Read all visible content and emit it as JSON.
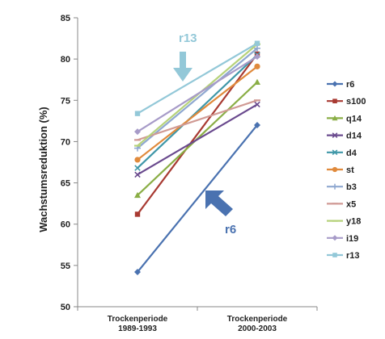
{
  "chart_data": {
    "type": "line",
    "title": "",
    "ylabel": "Wachstumsreduktion (%)",
    "xlabel": "",
    "categories": [
      [
        "Trockenperiode",
        "1989-1993"
      ],
      [
        "Trockenperiode",
        "2000-2003"
      ]
    ],
    "ylim": [
      50,
      85
    ],
    "yticks": [
      50,
      55,
      60,
      65,
      70,
      75,
      80,
      85
    ],
    "grid": false,
    "legend_position": "right",
    "series": [
      {
        "name": "r6",
        "color": "#4a72b0",
        "marker": "diamond",
        "values": [
          54.2,
          72.0
        ]
      },
      {
        "name": "s100",
        "color": "#a83a32",
        "marker": "square",
        "values": [
          61.2,
          80.6
        ]
      },
      {
        "name": "q14",
        "color": "#8aae46",
        "marker": "triangle",
        "values": [
          63.5,
          77.2
        ]
      },
      {
        "name": "d14",
        "color": "#6a4a8e",
        "marker": "x",
        "values": [
          66.0,
          74.5
        ]
      },
      {
        "name": "d4",
        "color": "#3f97a8",
        "marker": "x",
        "values": [
          66.8,
          80.5
        ]
      },
      {
        "name": "st",
        "color": "#e08a3c",
        "marker": "circle",
        "values": [
          67.8,
          79.1
        ]
      },
      {
        "name": "b3",
        "color": "#8fa8d0",
        "marker": "plus",
        "values": [
          69.2,
          81.3
        ]
      },
      {
        "name": "x5",
        "color": "#d09a94",
        "marker": "dash",
        "values": [
          70.2,
          75.0
        ]
      },
      {
        "name": "y18",
        "color": "#b6d27a",
        "marker": "dash",
        "values": [
          69.5,
          81.8
        ]
      },
      {
        "name": "i19",
        "color": "#a79bc8",
        "marker": "diamond",
        "values": [
          71.2,
          80.3
        ]
      },
      {
        "name": "r13",
        "color": "#93c8d8",
        "marker": "square",
        "values": [
          73.4,
          81.9
        ]
      }
    ],
    "annotations": [
      {
        "text": "r13",
        "color": "#93c8d8"
      },
      {
        "text": "r6",
        "color": "#4a72b0"
      }
    ]
  }
}
